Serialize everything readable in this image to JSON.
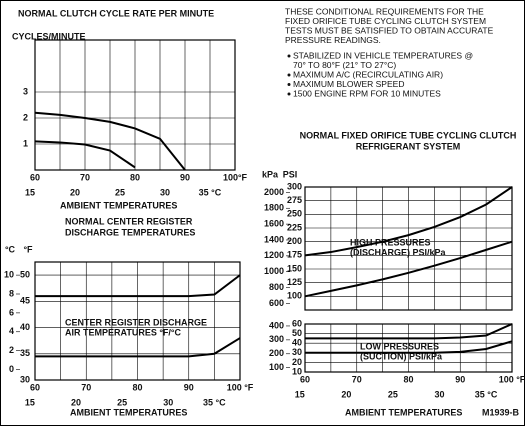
{
  "chart_data": [
    {
      "type": "line",
      "title": [
        "NORMAL CLUTCH CYCLE RATE PER MINUTE"
      ],
      "y_label": "CYCLES/MINUTE",
      "x_label": "AMBIENT TEMPERATURES",
      "x": [
        60,
        65,
        70,
        75,
        80,
        85,
        90,
        95,
        100
      ],
      "series": [
        {
          "color": "#000000",
          "values": [
            2.2,
            2.12,
            2.0,
            1.85,
            1.6,
            1.2,
            0,
            null,
            null
          ]
        },
        {
          "color": "#000000",
          "values": [
            1.1,
            1.06,
            0.98,
            0.75,
            0.1,
            null,
            null,
            null,
            null
          ]
        }
      ],
      "xlim": [
        60,
        100
      ],
      "xticks": [
        60,
        70,
        80,
        90,
        {
          "value": 100,
          "label": "100°F"
        }
      ],
      "x2lim": [
        15.56,
        37.78
      ],
      "x2ticks": [
        15,
        20,
        25,
        30,
        {
          "value": 35,
          "label": "35 °C"
        }
      ],
      "ylim": [
        0,
        5
      ],
      "yticks": [
        1,
        2,
        3
      ],
      "grid": true
    },
    {
      "type": "line",
      "title": [
        "NORMAL CENTER REGISTER",
        "DISCHARGE TEMPERATURES"
      ],
      "x_label": "AMBIENT TEMPERATURES",
      "annotation": [
        "CENTER REGISTER DISCHARGE",
        "AIR TEMPERATURES °F/°C"
      ],
      "y_unit": "°F",
      "y2_unit": "°C",
      "x": [
        60,
        65,
        70,
        75,
        80,
        85,
        90,
        95,
        100
      ],
      "series": [
        {
          "color": "#000000",
          "values": [
            46,
            46,
            46,
            46,
            46,
            46,
            46,
            46.3,
            50
          ]
        },
        {
          "color": "#000000",
          "values": [
            34.5,
            34.5,
            34.5,
            34.5,
            34.5,
            34.5,
            34.5,
            35,
            38
          ]
        }
      ],
      "xlim": [
        60,
        100
      ],
      "xticks": [
        60,
        70,
        80,
        90,
        {
          "value": 100,
          "label": "100 °F"
        }
      ],
      "x2lim": [
        15.56,
        37.78
      ],
      "x2ticks": [
        15,
        20,
        25,
        30,
        {
          "value": 35,
          "label": "35 °C"
        }
      ],
      "ylim": [
        30,
        52.5
      ],
      "yticks": [
        30,
        35,
        40,
        45,
        50
      ],
      "y2lim": [
        -1.11,
        11.39
      ],
      "y2ticks": [
        0,
        2,
        4,
        6,
        8,
        10
      ],
      "grid": true
    },
    {
      "type": "line",
      "title": [
        "NORMAL FIXED ORIFICE TUBE CYCLING CLUTCH",
        "REFRIGERANT SYSTEM"
      ],
      "annotation": [
        "HIGH PRESSURES",
        "(DISCHARGE) PSI/kPa"
      ],
      "y_unit": "PSI",
      "y2_unit": "kPa",
      "x": [
        60,
        65,
        70,
        75,
        80,
        85,
        90,
        95,
        100
      ],
      "series": [
        {
          "color": "#000000",
          "values": [
            175,
            181,
            190,
            200,
            212,
            227,
            245,
            268,
            300
          ]
        },
        {
          "color": "#000000",
          "values": [
            100,
            110,
            120,
            131,
            143,
            156,
            170,
            185,
            200
          ]
        }
      ],
      "xlim": [
        60,
        100
      ],
      "ylim": [
        75,
        300
      ],
      "yticks": [
        100,
        125,
        150,
        175,
        200,
        225,
        250,
        275,
        300
      ],
      "y2lim": [
        517,
        2068
      ],
      "y2ticks": [
        600,
        800,
        1000,
        1200,
        1400,
        1600,
        1800,
        2000
      ],
      "grid": true
    },
    {
      "type": "line",
      "annotation": [
        "LOW PRESSURES",
        "(SUCTION) PSI/kPa"
      ],
      "x_label": "AMBIENT TEMPERATURES",
      "x": [
        60,
        65,
        70,
        75,
        80,
        85,
        90,
        95,
        100
      ],
      "series": [
        {
          "color": "#000000",
          "values": [
            45,
            45,
            45,
            45,
            45,
            45,
            46,
            48,
            60
          ]
        },
        {
          "color": "#000000",
          "values": [
            30,
            30,
            30,
            30,
            30,
            30,
            31,
            34,
            42
          ]
        }
      ],
      "xlim": [
        60,
        100
      ],
      "xticks": [
        60,
        70,
        80,
        90,
        {
          "value": 100,
          "label": "100 °F"
        }
      ],
      "x2lim": [
        15.56,
        37.78
      ],
      "x2ticks": [
        15,
        20,
        25,
        30,
        {
          "value": 35,
          "label": "35 °C"
        }
      ],
      "ylim": [
        10,
        60
      ],
      "yticks": [
        10,
        20,
        30,
        40,
        50,
        60
      ],
      "y2lim": [
        69,
        414
      ],
      "y2ticks": [
        100,
        200,
        300,
        400
      ],
      "grid": true
    }
  ],
  "notes": {
    "intro": [
      "THESE CONDITIONAL REQUIREMENTS FOR THE",
      "FIXED ORIFICE TUBE CYCLING CLUTCH SYSTEM",
      "TESTS MUST BE SATISFIED TO OBTAIN ACCURATE",
      "PRESSURE READINGS."
    ],
    "bullets": [
      [
        "STABILIZED IN VEHICLE TEMPERATURES @",
        "70° TO 80°F (21° TO 27°C)"
      ],
      [
        "MAXIMUM A/C (RECIRCULATING AIR)"
      ],
      [
        "MAXIMUM BLOWER SPEED"
      ],
      [
        "1500 ENGINE RPM FOR 10 MINUTES"
      ]
    ]
  },
  "figure_id": "M1939-B"
}
